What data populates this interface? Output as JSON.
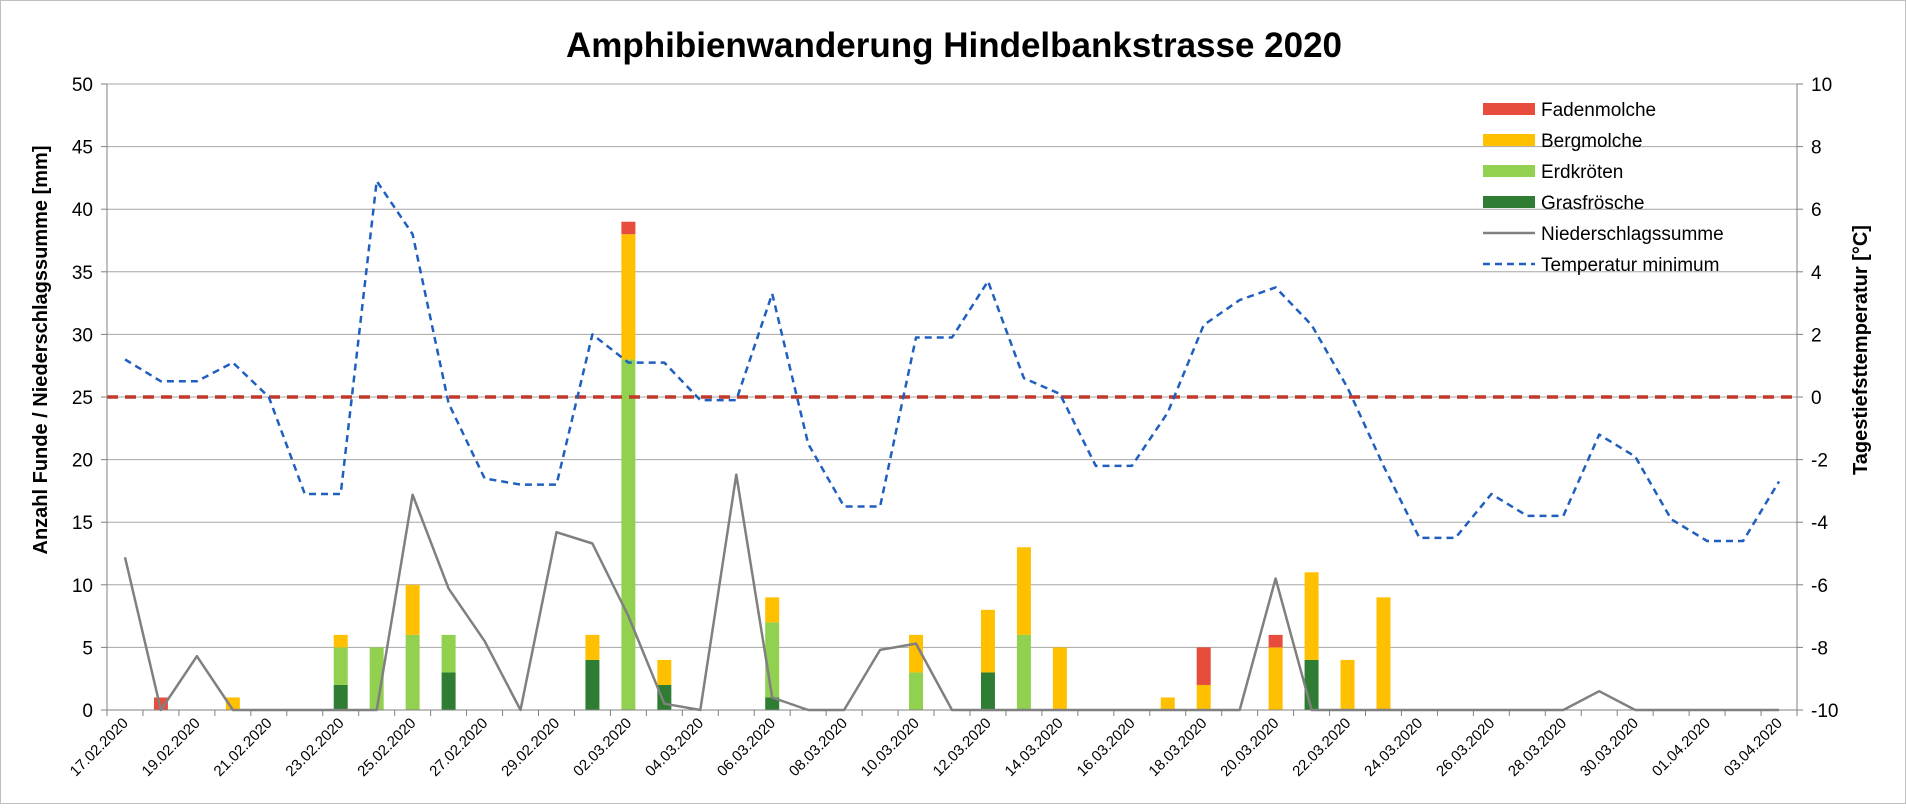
{
  "chart_data": {
    "type": "bar",
    "stacked": true,
    "title": "Amphibienwanderung Hindelbankstrasse 2020",
    "ylabel": "Anzahl Funde / Niederschlagssumme [mm]",
    "y2label": "Tagestiefsttemperatur [°C]",
    "ylim": [
      0,
      50
    ],
    "y2lim": [
      -10,
      10
    ],
    "yticks": [
      0,
      5,
      10,
      15,
      20,
      25,
      30,
      35,
      40,
      45,
      50
    ],
    "y2ticks": [
      -10,
      -8,
      -6,
      -4,
      -2,
      0,
      2,
      4,
      6,
      8,
      10
    ],
    "grid": true,
    "legend_position": "top-right",
    "reference_line": {
      "axis": "y2",
      "value": 0,
      "color": "#c0392b",
      "style": "dashed"
    },
    "x_tick_labels": [
      "17.02.2020",
      "19.02.2020",
      "21.02.2020",
      "23.02.2020",
      "25.02.2020",
      "27.02.2020",
      "29.02.2020",
      "02.03.2020",
      "04.03.2020",
      "06.03.2020",
      "08.03.2020",
      "10.03.2020",
      "12.03.2020",
      "14.03.2020",
      "16.03.2020",
      "18.03.2020",
      "20.03.2020",
      "22.03.2020",
      "24.03.2020",
      "26.03.2020",
      "28.03.2020",
      "30.03.2020",
      "01.04.2020",
      "03.04.2020"
    ],
    "x": [
      "17.02.2020",
      "18.02.2020",
      "19.02.2020",
      "20.02.2020",
      "21.02.2020",
      "22.02.2020",
      "23.02.2020",
      "24.02.2020",
      "25.02.2020",
      "26.02.2020",
      "27.02.2020",
      "28.02.2020",
      "29.02.2020",
      "01.03.2020",
      "02.03.2020",
      "03.03.2020",
      "04.03.2020",
      "05.03.2020",
      "06.03.2020",
      "07.03.2020",
      "08.03.2020",
      "09.03.2020",
      "10.03.2020",
      "11.03.2020",
      "12.03.2020",
      "13.03.2020",
      "14.03.2020",
      "15.03.2020",
      "16.03.2020",
      "17.03.2020",
      "18.03.2020",
      "19.03.2020",
      "20.03.2020",
      "21.03.2020",
      "22.03.2020",
      "23.03.2020",
      "24.03.2020",
      "25.03.2020",
      "26.03.2020",
      "27.03.2020",
      "28.03.2020",
      "29.03.2020",
      "30.03.2020",
      "31.03.2020",
      "01.04.2020",
      "02.04.2020",
      "03.04.2020"
    ],
    "bar_series": [
      {
        "name": "Grasfrösche",
        "color": "#2e7d32",
        "values": [
          0,
          0,
          0,
          0,
          0,
          0,
          2,
          0,
          0,
          3,
          0,
          0,
          0,
          4,
          0,
          2,
          0,
          0,
          1,
          0,
          0,
          0,
          0,
          0,
          3,
          0,
          0,
          0,
          0,
          0,
          0,
          0,
          0,
          4,
          0,
          0,
          0,
          0,
          0,
          0,
          0,
          0,
          0,
          0,
          0,
          0,
          0
        ]
      },
      {
        "name": "Erdkröten",
        "color": "#92d050",
        "values": [
          0,
          0,
          0,
          0,
          0,
          0,
          3,
          5,
          6,
          3,
          0,
          0,
          0,
          0,
          28,
          0,
          0,
          0,
          6,
          0,
          0,
          0,
          3,
          0,
          0,
          6,
          0,
          0,
          0,
          0,
          0,
          0,
          0,
          0,
          0,
          0,
          0,
          0,
          0,
          0,
          0,
          0,
          0,
          0,
          0,
          0,
          0
        ]
      },
      {
        "name": "Bergmolche",
        "color": "#ffc000",
        "values": [
          0,
          0,
          0,
          1,
          0,
          0,
          1,
          0,
          4,
          0,
          0,
          0,
          0,
          2,
          10,
          2,
          0,
          0,
          2,
          0,
          0,
          0,
          3,
          0,
          5,
          7,
          5,
          0,
          0,
          1,
          2,
          0,
          5,
          7,
          4,
          9,
          0,
          0,
          0,
          0,
          0,
          0,
          0,
          0,
          0,
          0,
          0
        ]
      },
      {
        "name": "Fadenmolche",
        "color": "#e74c3c",
        "values": [
          0,
          1,
          0,
          0,
          0,
          0,
          0,
          0,
          0,
          0,
          0,
          0,
          0,
          0,
          1,
          0,
          0,
          0,
          0,
          0,
          0,
          0,
          0,
          0,
          0,
          0,
          0,
          0,
          0,
          0,
          3,
          0,
          1,
          0,
          0,
          0,
          0,
          0,
          0,
          0,
          0,
          0,
          0,
          0,
          0,
          0,
          0
        ]
      }
    ],
    "line_series": [
      {
        "name": "Niederschlagssumme",
        "axis": "y",
        "color": "#808080",
        "style": "solid",
        "values": [
          12.2,
          0,
          4.3,
          0,
          0,
          0,
          0,
          0,
          17.2,
          9.7,
          5.5,
          0,
          14.2,
          13.3,
          7.5,
          0.5,
          0,
          18.8,
          1.0,
          0,
          0,
          4.8,
          5.3,
          0,
          0,
          0,
          0,
          0,
          0,
          0,
          0,
          0,
          10.5,
          0,
          0,
          0,
          0,
          0,
          0,
          0,
          0,
          1.5,
          0,
          0,
          0,
          0,
          0
        ]
      },
      {
        "name": "Temperatur minimum",
        "axis": "y2",
        "color": "#1f5fbf",
        "style": "dashed",
        "values": [
          1.2,
          0.5,
          0.5,
          1.1,
          0,
          -3.1,
          -3.1,
          6.9,
          5.2,
          -0.2,
          -2.6,
          -2.8,
          -2.8,
          2.0,
          1.1,
          1.1,
          -0.1,
          -0.1,
          3.3,
          -1.5,
          -3.5,
          -3.5,
          1.9,
          1.9,
          3.7,
          0.6,
          0.1,
          -2.2,
          -2.2,
          -0.5,
          2.3,
          3.1,
          3.5,
          2.3,
          0.3,
          -2.2,
          -4.5,
          -4.5,
          -3.1,
          -3.8,
          -3.8,
          -1.2,
          -1.9,
          -3.9,
          -4.6,
          -4.6,
          -2.7
        ]
      }
    ],
    "legend": [
      "Fadenmolche",
      "Bergmolche",
      "Erdkröten",
      "Grasfrösche",
      "Niederschlagssumme",
      "Temperatur minimum"
    ]
  }
}
